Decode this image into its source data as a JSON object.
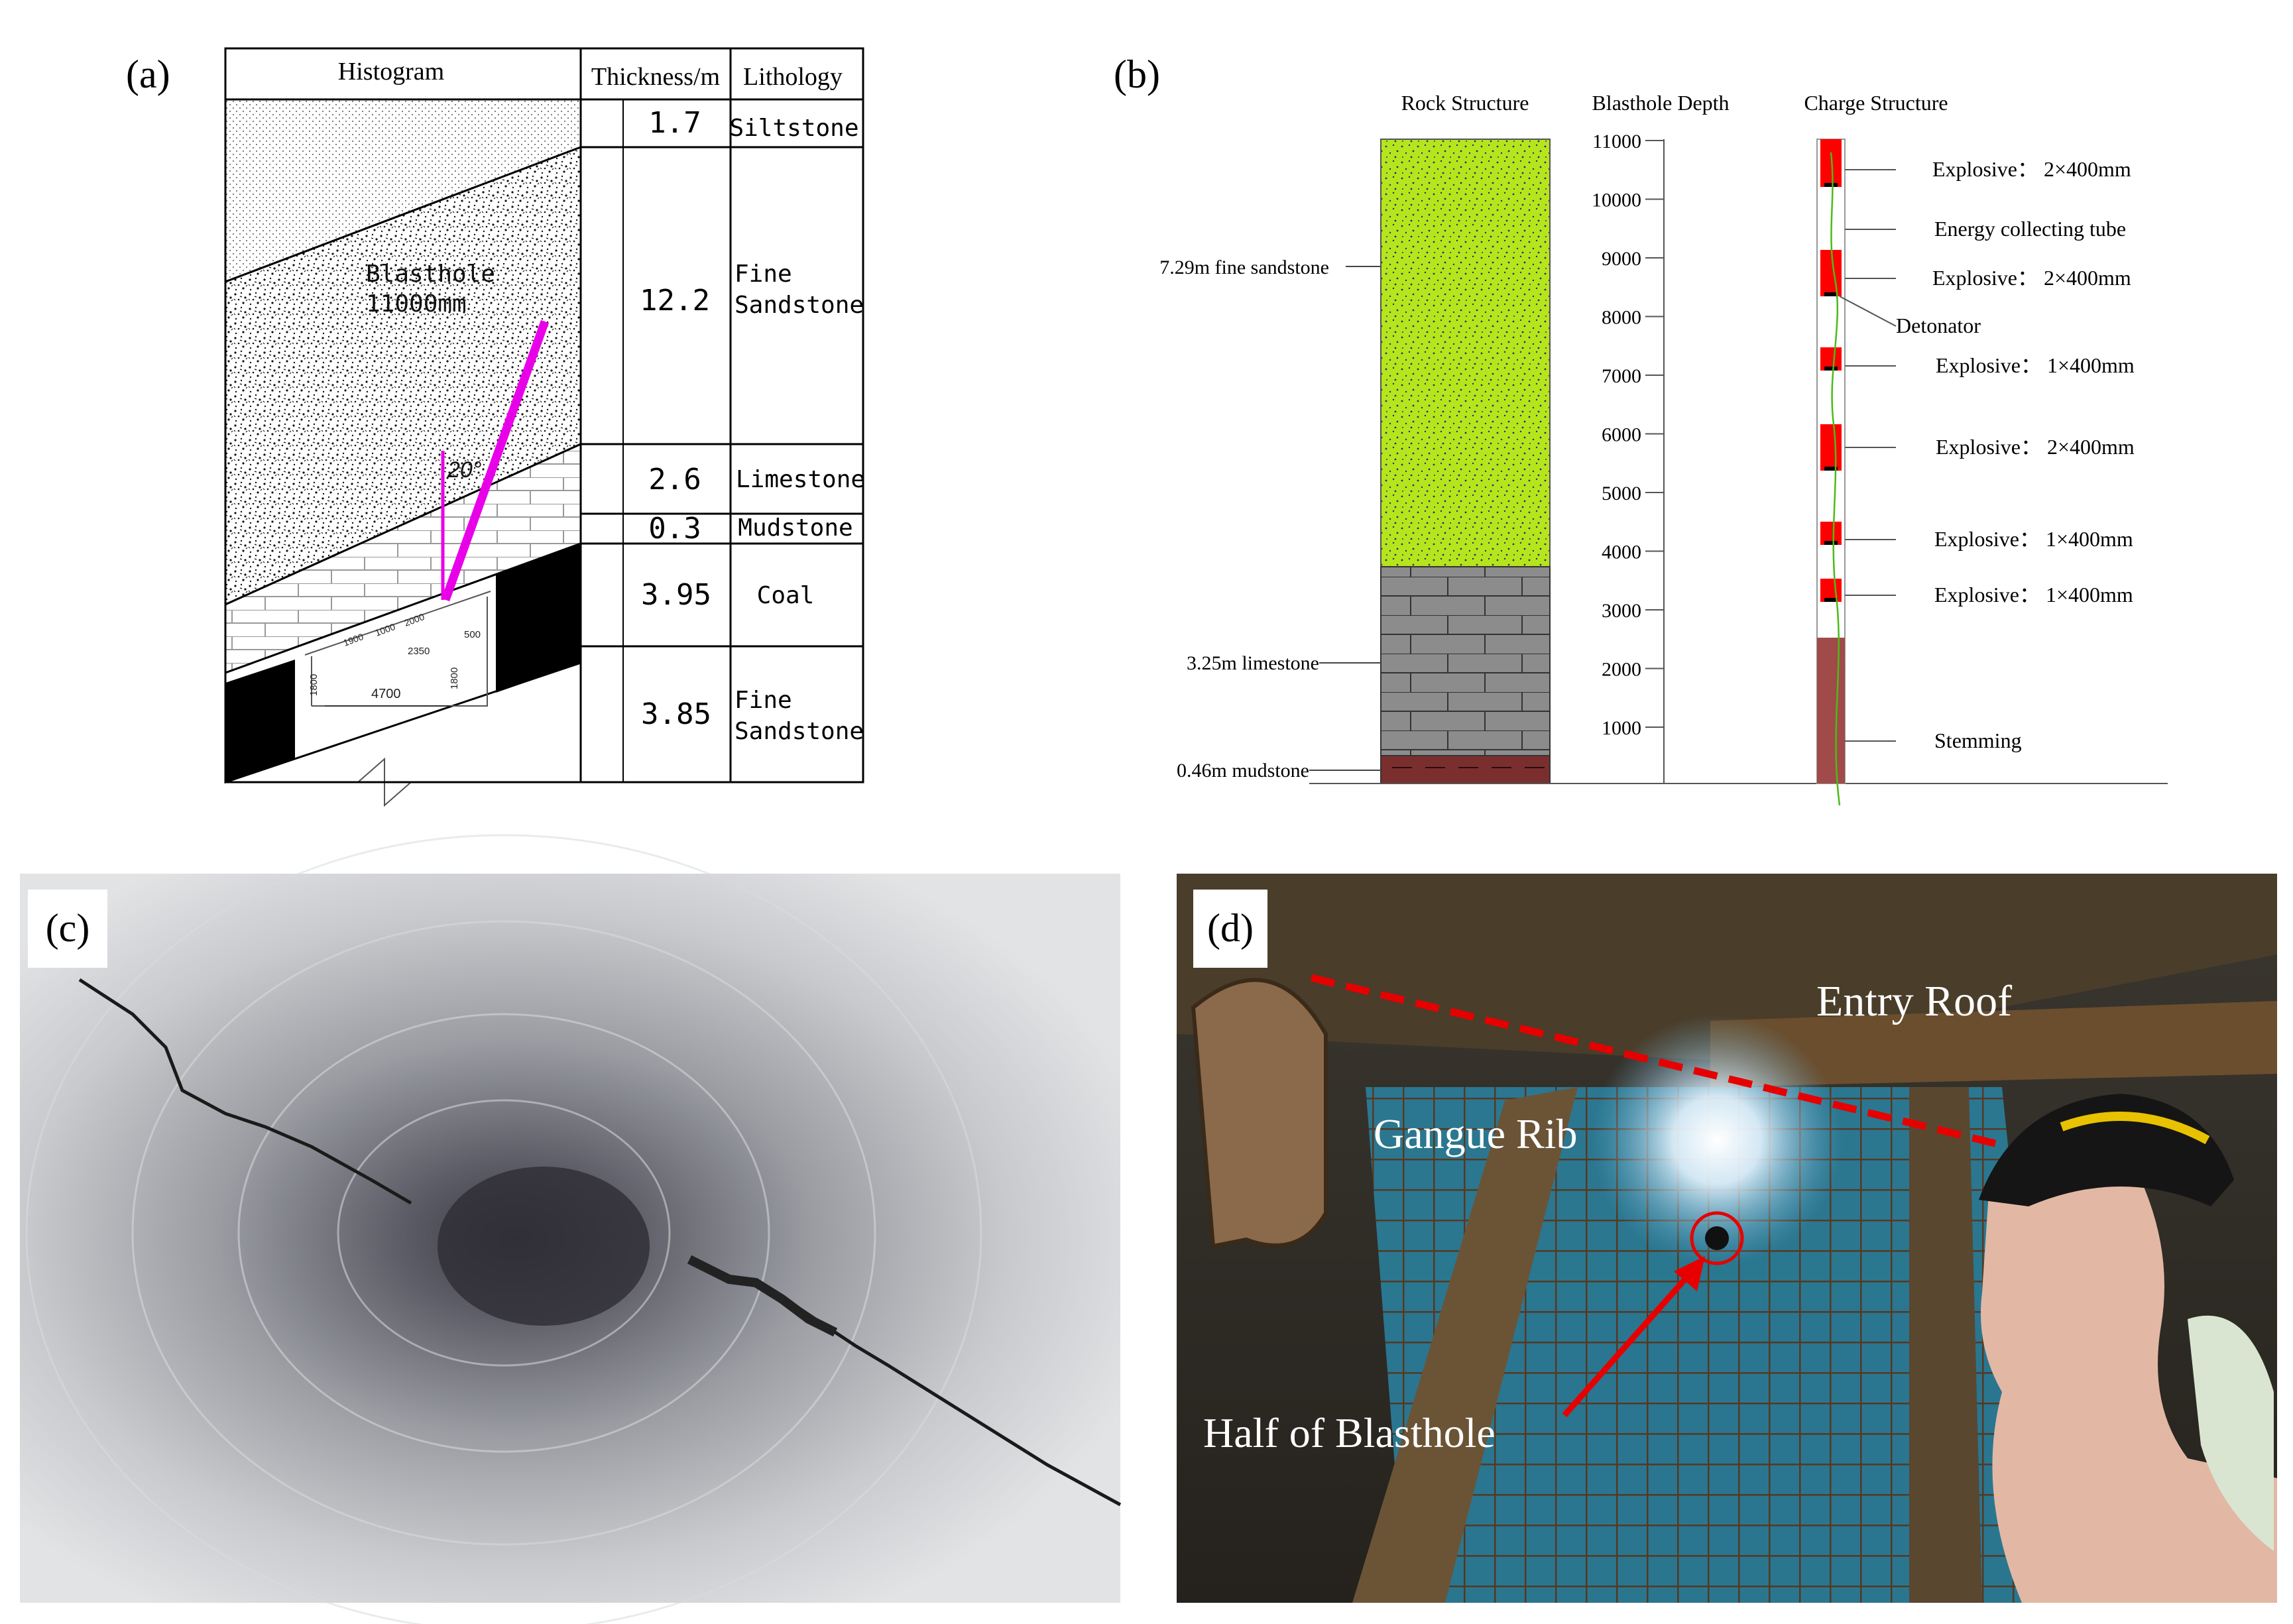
{
  "panel_a": {
    "label": "(a)",
    "headers": {
      "histogram": "Histogram",
      "thickness": "Thickness/m",
      "lithology": "Lithology"
    },
    "layers": [
      {
        "thickness": "1.7",
        "lithology": "Siltstone"
      },
      {
        "thickness": "12.2",
        "lithology_line1": "Fine",
        "lithology_line2": "Sandstone"
      },
      {
        "thickness": "2.6",
        "lithology": "Limestone"
      },
      {
        "thickness": "0.3",
        "lithology": "Mudstone"
      },
      {
        "thickness": "3.95",
        "lithology": "Coal"
      },
      {
        "thickness": "3.85",
        "lithology_line1": "Fine",
        "lithology_line2": "Sandstone"
      }
    ],
    "blasthole_label_line1": "Blasthole",
    "blasthole_label_line2": "11000mm",
    "angle_label": "20°",
    "dims": {
      "d4700": "4700",
      "d2350": "2350",
      "d500": "500",
      "d1800a": "1800",
      "d1800b": "1800",
      "d1900": "1900",
      "d1000": "1000",
      "d2000": "2000"
    },
    "colors": {
      "blasthole": "#e800e8",
      "coal": "#000000"
    }
  },
  "panel_b": {
    "label": "(b)",
    "headers": {
      "rock": "Rock Structure",
      "depth": "Blasthole Depth",
      "charge": "Charge Structure"
    },
    "rock_labels": {
      "sandstone": "7.29m fine sandstone",
      "limestone": "3.25m limestone",
      "mudstone": "0.46m mudstone"
    },
    "depth_ticks": [
      "11000",
      "10000",
      "9000",
      "8000",
      "7000",
      "6000",
      "5000",
      "4000",
      "3000",
      "2000",
      "1000"
    ],
    "charge_labels": [
      "Explosive： 2×400mm",
      "Energy collecting tube",
      "Explosive： 2×400mm",
      "Detonator",
      "Explosive： 1×400mm",
      "Explosive： 2×400mm",
      "Explosive： 1×400mm",
      "Explosive： 1×400mm",
      "Stemming"
    ],
    "colors": {
      "sandstone": "#b5e61d",
      "limestone": "#8c8c8c",
      "mudstone": "#7b2e2e",
      "explosive": "#ff0000",
      "stemming": "#a04a4a",
      "tube": "#4cbb17"
    }
  },
  "panel_c": {
    "label": "(c)"
  },
  "panel_d": {
    "label": "(d)",
    "entry_roof": "Entry Roof",
    "gangue_rib": "Gangue Rib",
    "half_blasthole": "Half of Blasthole",
    "colors": {
      "marker": "#e60000"
    }
  }
}
